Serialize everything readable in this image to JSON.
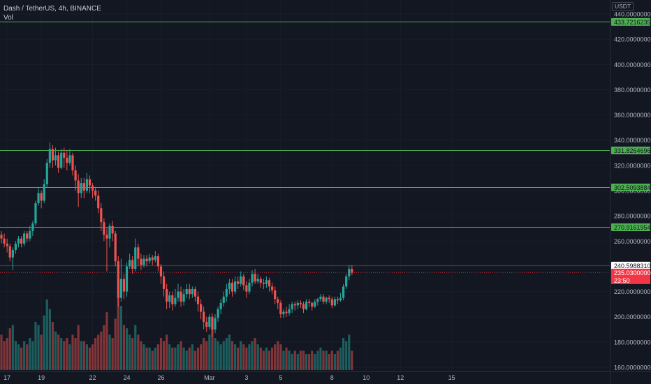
{
  "header": {
    "symbol_line": "Dash / TetherUS, 4h, BINANCE",
    "volume_label": "Vol",
    "unit_badge": "USDT"
  },
  "colors": {
    "background": "#131722",
    "up": "#26a69a",
    "down": "#ef5350",
    "level_line": "#4caf50",
    "level_tag": "#4caf50",
    "last_price_tag": "#f23645",
    "alert_line": "#8e1c36"
  },
  "chart_data": {
    "type": "candlestick",
    "timeframe": "4h",
    "ylim": [
      160,
      440
    ],
    "y_ticks": [
      160,
      180,
      200,
      220,
      240,
      260,
      280,
      300,
      320,
      340,
      360,
      380,
      400,
      420,
      440
    ],
    "y_tick_labels": [
      "160.00000000",
      "180.00000000",
      "200.00000000",
      "220.00000000",
      "240.00000000",
      "260.00000000",
      "280.00000000",
      "300.00000000",
      "320.00000000",
      "340.00000000",
      "360.00000000",
      "380.00000000",
      "400.00000000",
      "420.00000000",
      "440.00000000"
    ],
    "x_tick_labels": [
      {
        "label": "17",
        "bar": 2
      },
      {
        "label": "19",
        "bar": 14
      },
      {
        "label": "22",
        "bar": 32
      },
      {
        "label": "24",
        "bar": 44
      },
      {
        "label": "26",
        "bar": 56
      },
      {
        "label": "Mar",
        "bar": 73
      },
      {
        "label": "3",
        "bar": 86
      },
      {
        "label": "5",
        "bar": 98
      },
      {
        "label": "8",
        "bar": 116
      },
      {
        "label": "10",
        "bar": 128
      },
      {
        "label": "12",
        "bar": 140
      },
      {
        "label": "15",
        "bar": 158
      }
    ],
    "horizontal_levels": [
      {
        "value": 433.72162354,
        "label": "433.72162354"
      },
      {
        "value": 331.82646968,
        "label": "331.82646968"
      },
      {
        "value": 302.50938843,
        "label": "302.50938843"
      },
      {
        "value": 270.91619544,
        "label": "270.91619544"
      }
    ],
    "alert_level": {
      "value": 240.59883104,
      "label": "240.59883104"
    },
    "last_price": {
      "value": 235.03,
      "label": "235.03000000",
      "countdown": "23:50"
    },
    "candles": [
      [
        265,
        262,
        268,
        258,
        11
      ],
      [
        262,
        258,
        266,
        255,
        9
      ],
      [
        258,
        256,
        262,
        251,
        10
      ],
      [
        256,
        247,
        258,
        244,
        13
      ],
      [
        247,
        253,
        255,
        237,
        14
      ],
      [
        253,
        258,
        260,
        250,
        9
      ],
      [
        258,
        262,
        264,
        255,
        8
      ],
      [
        262,
        258,
        264,
        255,
        7
      ],
      [
        258,
        266,
        268,
        256,
        9
      ],
      [
        266,
        262,
        268,
        259,
        8
      ],
      [
        262,
        268,
        272,
        260,
        10
      ],
      [
        268,
        274,
        276,
        264,
        9
      ],
      [
        274,
        290,
        292,
        272,
        15
      ],
      [
        290,
        298,
        303,
        288,
        14
      ],
      [
        298,
        292,
        300,
        286,
        11
      ],
      [
        292,
        305,
        309,
        290,
        17
      ],
      [
        305,
        322,
        325,
        302,
        22
      ],
      [
        322,
        333,
        338,
        318,
        19
      ],
      [
        333,
        324,
        336,
        318,
        15
      ],
      [
        324,
        328,
        334,
        320,
        12
      ],
      [
        328,
        318,
        331,
        314,
        11
      ],
      [
        318,
        330,
        333,
        317,
        10
      ],
      [
        330,
        326,
        334,
        318,
        9
      ],
      [
        326,
        322,
        332,
        316,
        10
      ],
      [
        322,
        328,
        333,
        320,
        8
      ],
      [
        328,
        316,
        330,
        312,
        11
      ],
      [
        316,
        308,
        320,
        300,
        10
      ],
      [
        308,
        298,
        313,
        287,
        14
      ],
      [
        298,
        306,
        310,
        294,
        9
      ],
      [
        306,
        300,
        310,
        294,
        9
      ],
      [
        300,
        309,
        314,
        298,
        8
      ],
      [
        309,
        304,
        312,
        298,
        7
      ],
      [
        304,
        300,
        306,
        294,
        8
      ],
      [
        300,
        296,
        303,
        292,
        10
      ],
      [
        296,
        286,
        300,
        282,
        11
      ],
      [
        286,
        275,
        290,
        268,
        12
      ],
      [
        275,
        265,
        278,
        260,
        14
      ],
      [
        265,
        262,
        270,
        236,
        18
      ],
      [
        262,
        272,
        274,
        255,
        11
      ],
      [
        272,
        266,
        276,
        260,
        10
      ],
      [
        266,
        244,
        268,
        240,
        16
      ],
      [
        244,
        215,
        248,
        208,
        23
      ],
      [
        215,
        230,
        246,
        212,
        20
      ],
      [
        230,
        220,
        234,
        214,
        14
      ],
      [
        220,
        240,
        243,
        216,
        13
      ],
      [
        240,
        245,
        250,
        238,
        11
      ],
      [
        245,
        238,
        248,
        234,
        10
      ],
      [
        238,
        255,
        262,
        236,
        14
      ],
      [
        255,
        246,
        258,
        240,
        11
      ],
      [
        246,
        241,
        250,
        237,
        9
      ],
      [
        241,
        246,
        249,
        239,
        8
      ],
      [
        246,
        244,
        249,
        240,
        7
      ],
      [
        244,
        247,
        250,
        242,
        7
      ],
      [
        247,
        245,
        249,
        241,
        6
      ],
      [
        245,
        248,
        252,
        243,
        7
      ],
      [
        248,
        240,
        250,
        236,
        8
      ],
      [
        240,
        232,
        242,
        226,
        10
      ],
      [
        232,
        222,
        236,
        216,
        9
      ],
      [
        222,
        212,
        226,
        206,
        11
      ],
      [
        212,
        217,
        220,
        207,
        8
      ],
      [
        217,
        210,
        220,
        205,
        7
      ],
      [
        210,
        215,
        222,
        208,
        7
      ],
      [
        215,
        220,
        226,
        212,
        8
      ],
      [
        220,
        212,
        224,
        208,
        9
      ],
      [
        212,
        218,
        222,
        209,
        7
      ],
      [
        218,
        222,
        226,
        215,
        6
      ],
      [
        222,
        218,
        226,
        214,
        7
      ],
      [
        218,
        222,
        224,
        215,
        8
      ],
      [
        222,
        216,
        224,
        212,
        6
      ],
      [
        216,
        210,
        220,
        204,
        7
      ],
      [
        210,
        204,
        214,
        198,
        8
      ],
      [
        204,
        196,
        208,
        190,
        10
      ],
      [
        196,
        192,
        200,
        188,
        9
      ],
      [
        192,
        200,
        202,
        190,
        11
      ],
      [
        200,
        190,
        203,
        184,
        14
      ],
      [
        190,
        199,
        202,
        187,
        10
      ],
      [
        199,
        206,
        208,
        196,
        9
      ],
      [
        206,
        211,
        214,
        202,
        8
      ],
      [
        211,
        216,
        220,
        208,
        9
      ],
      [
        216,
        222,
        226,
        212,
        10
      ],
      [
        222,
        227,
        230,
        218,
        11
      ],
      [
        227,
        220,
        230,
        216,
        9
      ],
      [
        220,
        228,
        232,
        218,
        8
      ],
      [
        228,
        226,
        232,
        222,
        7
      ],
      [
        226,
        232,
        236,
        224,
        9
      ],
      [
        232,
        225,
        234,
        221,
        8
      ],
      [
        225,
        220,
        228,
        215,
        7
      ],
      [
        220,
        227,
        230,
        218,
        8
      ],
      [
        227,
        234,
        237,
        224,
        9
      ],
      [
        234,
        228,
        238,
        226,
        10
      ],
      [
        228,
        230,
        234,
        226,
        8
      ],
      [
        230,
        227,
        232,
        223,
        7
      ],
      [
        227,
        226,
        230,
        222,
        6
      ],
      [
        226,
        229,
        232,
        223,
        7
      ],
      [
        229,
        224,
        231,
        220,
        6
      ],
      [
        224,
        221,
        227,
        218,
        7
      ],
      [
        221,
        214,
        224,
        210,
        8
      ],
      [
        214,
        211,
        216,
        206,
        9
      ],
      [
        211,
        202,
        213,
        199,
        8
      ],
      [
        202,
        204,
        206,
        199,
        6
      ],
      [
        204,
        203,
        208,
        200,
        7
      ],
      [
        203,
        206,
        210,
        201,
        6
      ],
      [
        206,
        210,
        212,
        203,
        5
      ],
      [
        210,
        209,
        212,
        205,
        6
      ],
      [
        209,
        211,
        213,
        206,
        5
      ],
      [
        211,
        210,
        213,
        207,
        6
      ],
      [
        210,
        206,
        212,
        203,
        6
      ],
      [
        206,
        212,
        214,
        205,
        5
      ],
      [
        212,
        211,
        214,
        208,
        5
      ],
      [
        211,
        208,
        212,
        205,
        6
      ],
      [
        208,
        212,
        214,
        207,
        5
      ],
      [
        212,
        214,
        215,
        209,
        6
      ],
      [
        214,
        216,
        218,
        212,
        7
      ],
      [
        216,
        212,
        218,
        210,
        6
      ],
      [
        212,
        215,
        216,
        210,
        6
      ],
      [
        215,
        214,
        217,
        211,
        5
      ],
      [
        214,
        209,
        216,
        207,
        6
      ],
      [
        209,
        214,
        216,
        208,
        5
      ],
      [
        214,
        213,
        216,
        210,
        6
      ],
      [
        213,
        215,
        219,
        212,
        7
      ],
      [
        215,
        224,
        226,
        213,
        10
      ],
      [
        224,
        232,
        234,
        222,
        9
      ],
      [
        232,
        238,
        241,
        229,
        11
      ],
      [
        238,
        235,
        241,
        233,
        6
      ]
    ]
  }
}
